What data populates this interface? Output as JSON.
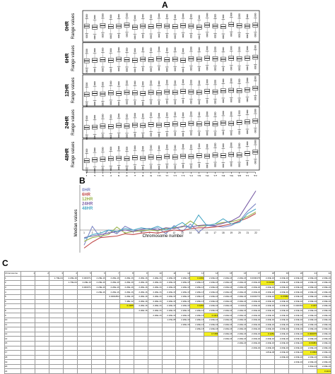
{
  "panels": {
    "A": "A",
    "B": "B",
    "C": "C"
  },
  "chart_data": [
    {
      "type": "box",
      "panel": "A",
      "xlabel": "Chromosome number",
      "ylabel": "Range values",
      "facets": [
        "0HR",
        "6HR",
        "12HR",
        "24HR",
        "48HR"
      ],
      "categories": [
        "1",
        "2",
        "3",
        "4",
        "5",
        "6",
        "7",
        "8",
        "9",
        "10",
        "11",
        "12",
        "13",
        "14",
        "15",
        "16",
        "17",
        "18",
        "19",
        "20",
        "21",
        "22"
      ],
      "sub_labels": [
        "n=61",
        "n=40",
        "n=31",
        "n=28",
        "n=41",
        "n=51",
        "n=31",
        "n=27",
        "n=22",
        "n=14",
        "n=40",
        "n=37",
        "n=13",
        "n=24",
        "n=26",
        "n=18",
        "n=17",
        "n=17",
        "n=19",
        "n=26",
        "n=11",
        "n=18"
      ],
      "medians": [
        [
          60,
          58,
          61,
          59,
          60,
          62,
          58,
          60,
          59,
          61,
          60,
          59,
          61,
          60,
          58,
          62,
          60,
          59,
          63,
          61,
          60,
          62
        ],
        [
          55,
          56,
          57,
          56,
          58,
          57,
          56,
          58,
          57,
          59,
          57,
          58,
          56,
          59,
          58,
          60,
          59,
          58,
          60,
          59,
          60,
          62
        ],
        [
          52,
          54,
          53,
          55,
          54,
          56,
          55,
          54,
          56,
          55,
          57,
          56,
          58,
          57,
          56,
          58,
          57,
          59,
          60,
          59,
          61,
          64
        ],
        [
          50,
          51,
          53,
          52,
          54,
          53,
          55,
          54,
          56,
          55,
          56,
          57,
          56,
          58,
          57,
          58,
          57,
          59,
          58,
          60,
          61,
          63
        ],
        [
          48,
          50,
          51,
          52,
          53,
          52,
          54,
          53,
          55,
          54,
          56,
          55,
          57,
          56,
          58,
          57,
          59,
          58,
          60,
          59,
          62,
          65
        ]
      ]
    },
    {
      "type": "line",
      "panel": "B",
      "xlabel": "Chromosome number",
      "ylabel": "Median values",
      "x": [
        1,
        2,
        3,
        4,
        5,
        6,
        7,
        8,
        9,
        10,
        11,
        12,
        13,
        14,
        15,
        16,
        17,
        18,
        19,
        20,
        21,
        22
      ],
      "x_tick_labels": [
        "1",
        "2",
        "3",
        "4",
        "5",
        "6",
        "7",
        "8",
        "9",
        "10",
        "11",
        "12",
        "13",
        "14",
        "15",
        "16",
        "17",
        "18",
        "19",
        "20",
        "21",
        "22"
      ],
      "series": [
        {
          "name": "0HR",
          "color": "#7f88c6",
          "values": [
            -2.0,
            0.5,
            -1.0,
            0.0,
            -0.5,
            0.5,
            0.0,
            -0.2,
            0.0,
            0.3,
            -0.5,
            0.6,
            -0.2,
            0.8,
            -0.3,
            0.6,
            0.5,
            0.4,
            0.6,
            1.2,
            2.5,
            3.5
          ]
        },
        {
          "name": "6HR",
          "color": "#c04a4a",
          "values": [
            -2.4,
            -1.6,
            -1.0,
            -0.9,
            -0.8,
            -0.5,
            -0.6,
            -0.4,
            -0.3,
            -0.4,
            -0.2,
            0.0,
            -0.1,
            0.2,
            0.3,
            0.3,
            0.4,
            0.6,
            0.8,
            1.2,
            1.6,
            2.2
          ]
        },
        {
          "name": "12HR",
          "color": "#98b44a",
          "values": [
            -1.5,
            -1.0,
            -0.8,
            -0.6,
            0.4,
            -0.4,
            -0.2,
            -0.1,
            0.0,
            -0.1,
            0.2,
            0.3,
            0.4,
            1.2,
            0.5,
            0.6,
            0.8,
            1.0,
            1.1,
            1.4,
            1.8,
            2.4
          ]
        },
        {
          "name": "24HR",
          "color": "#7a5ea6",
          "values": [
            -1.0,
            -0.8,
            -0.6,
            -0.4,
            -0.2,
            0.0,
            -0.2,
            0.1,
            0.2,
            0.0,
            0.3,
            0.2,
            0.5,
            0.4,
            0.6,
            0.7,
            0.6,
            0.9,
            1.2,
            1.8,
            3.5,
            5.2
          ]
        },
        {
          "name": "48HR",
          "color": "#4aa8c6",
          "values": [
            -1.2,
            -0.6,
            -0.4,
            0.0,
            -0.2,
            0.2,
            0.0,
            0.3,
            0.1,
            0.5,
            0.0,
            0.4,
            1.0,
            0.2,
            2.0,
            0.6,
            0.8,
            1.5,
            0.8,
            1.0,
            2.2,
            2.8
          ]
        }
      ],
      "legend_position": "top-left",
      "ylim": [
        -3,
        6
      ]
    }
  ],
  "table": {
    "corner": "Chromosome",
    "header": [
      "1",
      "2",
      "3",
      "4",
      "5",
      "6",
      "7",
      "8",
      "9",
      "10",
      "11",
      "12",
      "13",
      "14",
      "15",
      "16",
      "17",
      "18",
      "19",
      "20",
      "21",
      "22"
    ],
    "rows": [
      {
        "label": "1",
        "cells": [
          "",
          " ",
          "1.70E-04",
          "2.20E-16",
          "0.000371",
          "2.20E-16",
          "2.20E-16",
          "2.20E-16",
          "2.20E-16",
          "2.20E-16",
          "2.20E-16",
          "2.20E-16",
          "0.1093",
          "2.20E-16",
          "2.20E-16",
          "2.20E-16",
          "0.0000473",
          "2.20E-16",
          "2.20E-16",
          "2.20E-16",
          "2.20E-16",
          "2.20E-16"
        ],
        "hl": [
          12
        ]
      },
      {
        "label": "2",
        "cells": [
          "",
          "",
          "",
          "1.70E-04",
          "2.20E-16",
          "2.20E-16",
          "2.20E-16",
          "2.20E-16",
          "2.20E-16",
          "2.20E-16",
          "2.20E-16",
          "2.20E-16",
          "2.20E-16",
          "2.20E-16",
          "2.20E-16",
          "2.20E-16",
          "2.20E-16",
          "0.01096",
          "2.20E-16",
          "2.20E-16",
          "2.20E-16",
          "2.20E-16"
        ],
        "hl": [
          17
        ]
      },
      {
        "label": "3",
        "cells": [
          "",
          "",
          "",
          "",
          "0.000371",
          "2.20E-16",
          "2.20E-16",
          "2.20E-16",
          "2.20E-16",
          "2.20E-16",
          "2.20E-16",
          "2.20E-16",
          "2.20E-16",
          "2.20E-16",
          "2.20E-16",
          "2.20E-16",
          "2.20E-16",
          "2.20E-16",
          "2.20E-16",
          "2.20E-16",
          "2.20E-16",
          "2.20E-16"
        ],
        "hl": []
      },
      {
        "label": "4",
        "cells": [
          "",
          "",
          "",
          "",
          "",
          "2.20E-16",
          "2.20E-16",
          "2.20E-16",
          "2.20E-16",
          "2.20E-16",
          "2.20E-16",
          "2.20E-16",
          "2.20E-16",
          "2.20E-16",
          "2.20E-16",
          "2.20E-16",
          "2.20E-16",
          "2.20E-16",
          "2.20E-16",
          "2.20E-16",
          "2.20E-16",
          "2.20E-16"
        ],
        "hl": []
      },
      {
        "label": "5",
        "cells": [
          "",
          "",
          "",
          "",
          "",
          "",
          "0.0001854",
          "2.20E-16",
          "2.20E-16",
          "2.20E-16",
          "2.20E-16",
          "2.20E-16",
          "2.20E-16",
          "2.20E-16",
          "2.20E-16",
          "2.20E-16",
          "0.0003771",
          "2.20E-16",
          "0.07881",
          "2.20E-16",
          "2.20E-16",
          "2.20E-16"
        ],
        "hl": [
          18
        ]
      },
      {
        "label": "6",
        "cells": [
          "",
          "",
          "",
          "",
          "",
          "",
          "",
          "7.48E-12",
          "2.20E-16",
          "2.20E-16",
          "2.20E-16",
          "2.20E-16",
          "2.20E-16",
          "2.20E-16",
          "2.20E-16",
          "2.20E-16",
          "2.20E-16",
          "2.20E-16",
          "2.20E-16",
          "2.20E-16",
          "2.20E-16",
          "2.20E-16"
        ],
        "hl": []
      },
      {
        "label": "7",
        "cells": [
          "",
          "",
          "",
          "",
          "",
          "",
          "",
          "0.2285",
          "2.20E-16",
          "2.20E-16",
          "2.20E-16",
          "2.20E-16",
          "0.4263",
          "2.20E-16",
          "2.20E-16",
          "0.01014",
          "2.20E-16",
          "2.20E-16",
          "2.20E-16",
          "0.000363",
          "0.187",
          "2.20E-16"
        ],
        "hl": [
          7,
          12,
          20
        ]
      },
      {
        "label": "8",
        "cells": [
          "",
          "",
          "",
          "",
          "",
          "",
          "",
          "",
          "2.20E-16",
          "2.20E-16",
          "2.20E-16",
          "2.20E-16",
          "2.20E-16",
          "2.20E-16",
          "2.20E-16",
          "2.20E-16",
          "2.20E-16",
          "2.20E-16",
          "2.20E-16",
          "2.20E-16",
          "2.20E-16",
          "2.20E-16"
        ],
        "hl": []
      },
      {
        "label": "9",
        "cells": [
          "",
          "",
          "",
          "",
          "",
          "",
          "",
          "",
          "",
          "2.20E-16",
          "2.20E-16",
          "2.20E-16",
          "2.20E-16",
          "0.1113",
          "2.20E-16",
          "2.20E-16",
          "2.20E-16",
          "2.20E-16",
          "2.20E-16",
          "2.20E-16",
          "2.20E-16",
          "2.20E-16"
        ],
        "hl": [
          13
        ]
      },
      {
        "label": "10",
        "cells": [
          "",
          "",
          "",
          "",
          "",
          "",
          "",
          "",
          "",
          "",
          "1.07E-05",
          "2.20E-16",
          "2.20E-16",
          "2.20E-16",
          "2.20E-16",
          "2.20E-16",
          "2.20E-16",
          "2.20E-16",
          "2.20E-16",
          "2.20E-16",
          "2.20E-16",
          "2.20E-16"
        ],
        "hl": []
      },
      {
        "label": "11",
        "cells": [
          "",
          "",
          "",
          "",
          "",
          "",
          "",
          "",
          "",
          "",
          "",
          "2.20E-16",
          "2.20E-16",
          "2.20E-16",
          "2.20E-16",
          "2.20E-16",
          "2.20E-16",
          "2.20E-16",
          "2.20E-16",
          "2.20E-16",
          "2.20E-16",
          "2.20E-16"
        ],
        "hl": []
      },
      {
        "label": "12",
        "cells": [
          "",
          "",
          "",
          "",
          "",
          "",
          "",
          "",
          "",
          "",
          "",
          "",
          "2.20E-16",
          "2.20E-16",
          "2.20E-16",
          "2.20E-16",
          "2.20E-16",
          "2.20E-16",
          "2.20E-16",
          "2.20E-16",
          "2.20E-16",
          "2.20E-16"
        ],
        "hl": []
      },
      {
        "label": "13",
        "cells": [
          "",
          "",
          "",
          "",
          "",
          "",
          "",
          "",
          "",
          "",
          "",
          "",
          "",
          "0.7456",
          "2.20E-16",
          "2.20E-16",
          "2.20E-16",
          "0.1281",
          "2.20E-16",
          "2.20E-16",
          "0.000075",
          "2.20E-16"
        ],
        "hl": [
          13,
          17,
          20
        ]
      },
      {
        "label": "14",
        "cells": [
          "",
          "",
          "",
          "",
          "",
          "",
          "",
          "",
          "",
          "",
          "",
          "",
          "",
          "",
          "2.20E-16",
          "2.20E-16",
          "2.20E-16",
          "2.20E-16",
          "2.20E-16",
          "2.20E-16",
          "2.20E-16",
          "2.20E-16"
        ],
        "hl": []
      },
      {
        "label": "15",
        "cells": [
          "",
          "",
          "",
          "",
          "",
          "",
          "",
          "",
          "",
          "",
          "",
          "",
          "",
          "",
          "",
          "2.20E-16",
          "2.20E-16",
          "2.20E-16",
          "2.20E-16",
          "2.20E-16",
          "0.03381",
          "2.20E-16"
        ],
        "hl": [
          20
        ]
      },
      {
        "label": "16",
        "cells": [
          "",
          "",
          "",
          "",
          "",
          "",
          "",
          "",
          "",
          "",
          "",
          "",
          "",
          "",
          "",
          "",
          "2.20E-16",
          "2.20E-16",
          "2.20E-16",
          "2.20E-16",
          "2.20E-16",
          "2.20E-16"
        ],
        "hl": []
      },
      {
        "label": "17",
        "cells": [
          "",
          "",
          "",
          "",
          "",
          "",
          "",
          "",
          "",
          "",
          "",
          "",
          "",
          "",
          "",
          "",
          "",
          "4.81E-06",
          "2.20E-16",
          "2.20E-16",
          "0.1094",
          "2.20E-16"
        ],
        "hl": [
          20
        ]
      },
      {
        "label": "18",
        "cells": [
          "",
          "",
          "",
          "",
          "",
          "",
          "",
          "",
          "",
          "",
          "",
          "",
          "",
          "",
          "",
          "",
          "",
          "",
          "2.20E-16",
          "2.20E-16",
          "2.20E-16",
          "2.20E-16"
        ],
        "hl": []
      },
      {
        "label": "19",
        "cells": [
          "",
          "",
          "",
          "",
          "",
          "",
          "",
          "",
          "",
          "",
          "",
          "",
          "",
          "",
          "",
          "",
          "",
          "",
          "",
          "2.20E-16",
          "2.20E-16",
          "2.20E-16"
        ],
        "hl": []
      },
      {
        "label": "20",
        "cells": [
          "",
          "",
          "",
          "",
          "",
          "",
          "",
          "",
          "",
          "",
          "",
          "",
          "",
          "",
          "",
          "",
          "",
          "",
          "",
          "",
          "1.01E-13",
          "2.20E-16"
        ],
        "hl": []
      },
      {
        "label": "21",
        "cells": [
          "",
          "",
          "",
          "",
          "",
          "",
          "",
          "",
          "",
          "",
          "",
          "",
          "",
          "",
          "",
          "",
          "",
          "",
          "",
          "",
          "",
          "0.1131"
        ],
        "hl": [
          21
        ]
      }
    ]
  }
}
